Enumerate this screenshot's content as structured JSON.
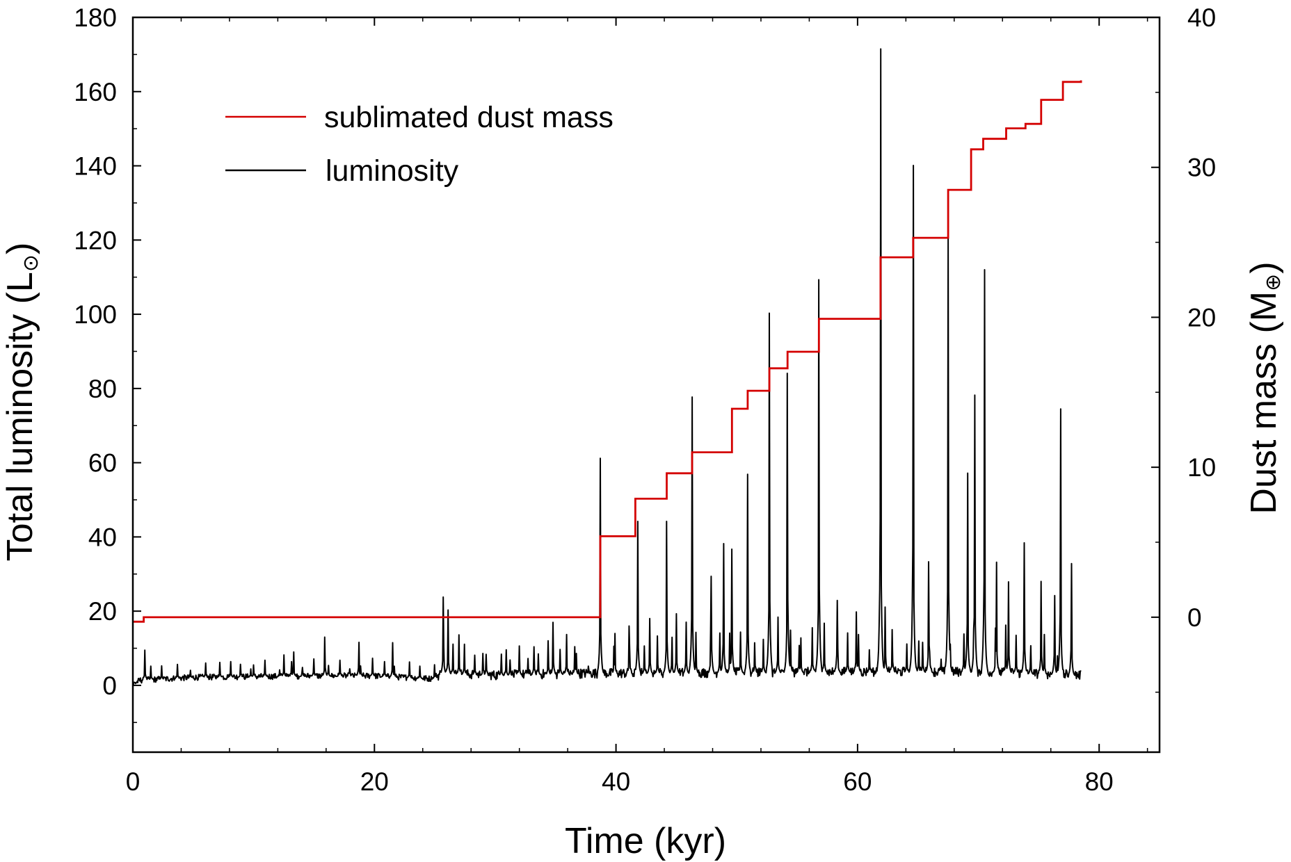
{
  "chart_data": {
    "type": "line",
    "xlabel": "Time (kyr)",
    "ylabel_left": {
      "text": "Total luminosity (L",
      "unit_symbol": "⊙",
      "close": ")"
    },
    "ylabel_right": {
      "text": "Dust mass (M",
      "unit_symbol": "⊕",
      "close": ")"
    },
    "x_range": [
      0,
      85
    ],
    "y_left_range": [
      -18,
      180
    ],
    "y_right_range": [
      -9,
      40
    ],
    "x_ticks": [
      0,
      20,
      40,
      60,
      80
    ],
    "x_tick_labels": [
      "0",
      "20",
      "40",
      "60",
      "80"
    ],
    "x_minor_step": 4,
    "y_left_ticks": [
      0,
      20,
      40,
      60,
      80,
      100,
      120,
      140,
      160,
      180
    ],
    "y_left_tick_labels": [
      "0",
      "20",
      "40",
      "60",
      "80",
      "100",
      "120",
      "140",
      "160",
      "180"
    ],
    "y_right_ticks": [
      0,
      10,
      20,
      30,
      40
    ],
    "y_right_tick_labels": [
      "0",
      "10",
      "20",
      "30",
      "40"
    ],
    "legend": {
      "position": "top-left",
      "entries": [
        {
          "label": "sublimated dust mass",
          "color": "#d40000"
        },
        {
          "label": "luminosity",
          "color": "#000000"
        }
      ]
    },
    "series": [
      {
        "name": "sublimated dust mass",
        "axis": "right",
        "color": "#d40000",
        "step": true,
        "x": [
          0.0,
          0.9,
          38.7,
          41.6,
          44.2,
          46.3,
          49.6,
          50.9,
          52.7,
          54.2,
          56.8,
          61.9,
          64.6,
          67.5,
          69.4,
          70.4,
          72.3,
          73.9,
          75.2,
          77.0,
          78.5
        ],
        "values": [
          -0.3,
          0.0,
          5.4,
          7.9,
          9.6,
          11.0,
          13.9,
          15.1,
          16.6,
          17.7,
          19.9,
          24.0,
          25.3,
          28.5,
          31.2,
          31.9,
          32.6,
          32.9,
          34.5,
          35.7,
          35.8
        ]
      },
      {
        "name": "luminosity",
        "axis": "left",
        "color": "#000000",
        "baseline": [
          [
            0.0,
            0.2
          ],
          [
            0.6,
            1.2
          ],
          [
            1.0,
            1.3
          ],
          [
            5.0,
            2.0
          ],
          [
            10.0,
            2.2
          ],
          [
            15.0,
            2.4
          ],
          [
            20.0,
            2.4
          ],
          [
            25.0,
            1.6
          ],
          [
            25.5,
            3.0
          ],
          [
            30.0,
            2.5
          ],
          [
            38.0,
            3.0
          ],
          [
            40.0,
            3.0
          ],
          [
            50.0,
            3.2
          ],
          [
            60.0,
            3.4
          ],
          [
            70.0,
            3.4
          ],
          [
            78.5,
            2.5
          ]
        ],
        "peaks": [
          [
            1.0,
            9.5
          ],
          [
            10.0,
            5.5
          ],
          [
            12.5,
            8.2
          ],
          [
            13.3,
            9.0
          ],
          [
            15.9,
            13.0
          ],
          [
            18.7,
            11.6
          ],
          [
            21.5,
            11.5
          ],
          [
            25.7,
            23.8
          ],
          [
            26.1,
            20.3
          ],
          [
            27.0,
            13.6
          ],
          [
            29.0,
            8.6
          ],
          [
            30.9,
            9.6
          ],
          [
            33.2,
            10.4
          ],
          [
            34.8,
            17.0
          ],
          [
            35.9,
            13.7
          ],
          [
            36.7,
            8.6
          ],
          [
            38.7,
            61.2
          ],
          [
            39.9,
            14.0
          ],
          [
            41.1,
            16.0
          ],
          [
            41.8,
            44.2
          ],
          [
            42.8,
            18.0
          ],
          [
            44.2,
            44.2
          ],
          [
            45.0,
            19.3
          ],
          [
            46.3,
            77.7
          ],
          [
            47.9,
            29.4
          ],
          [
            48.9,
            38.2
          ],
          [
            49.6,
            36.7
          ],
          [
            50.9,
            56.9
          ],
          [
            52.7,
            100.3
          ],
          [
            54.2,
            84.1
          ],
          [
            55.3,
            12.8
          ],
          [
            56.8,
            109.3
          ],
          [
            58.3,
            22.9
          ],
          [
            59.9,
            19.8
          ],
          [
            61.9,
            171.5
          ],
          [
            62.3,
            21.1
          ],
          [
            64.6,
            140.1
          ],
          [
            65.4,
            11.6
          ],
          [
            65.9,
            33.3
          ],
          [
            67.5,
            120.6
          ],
          [
            69.1,
            57.2
          ],
          [
            69.7,
            78.2
          ],
          [
            70.5,
            112.0
          ],
          [
            71.5,
            33.2
          ],
          [
            72.5,
            27.9
          ],
          [
            73.8,
            38.4
          ],
          [
            75.2,
            28.0
          ],
          [
            76.3,
            24.2
          ],
          [
            76.8,
            74.5
          ],
          [
            77.7,
            32.8
          ]
        ]
      }
    ]
  }
}
